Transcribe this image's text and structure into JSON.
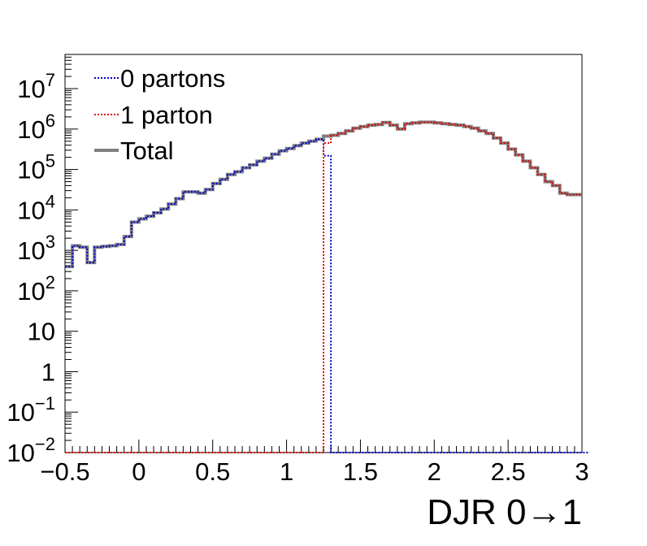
{
  "chart_data": {
    "type": "line",
    "style": "step-histogram",
    "xlabel": "DJR 0→1",
    "ylabel": "",
    "title": "",
    "xlim": [
      -0.5,
      3.0
    ],
    "ylim": [
      0.01,
      70000000
    ],
    "yscale": "log",
    "grid": false,
    "legend_position": "top-left",
    "x_ticks": [
      {
        "value": -0.5,
        "label": "−0.5"
      },
      {
        "value": 0,
        "label": "0"
      },
      {
        "value": 0.5,
        "label": "0.5"
      },
      {
        "value": 1,
        "label": "1"
      },
      {
        "value": 1.5,
        "label": "1.5"
      },
      {
        "value": 2,
        "label": "2"
      },
      {
        "value": 2.5,
        "label": "2.5"
      },
      {
        "value": 3,
        "label": "3"
      }
    ],
    "y_ticks": [
      {
        "value": 0.01,
        "base": "10",
        "exp": "−2"
      },
      {
        "value": 0.1,
        "base": "10",
        "exp": "−1"
      },
      {
        "value": 1,
        "base": "1",
        "exp": ""
      },
      {
        "value": 10,
        "base": "10",
        "exp": ""
      },
      {
        "value": 100,
        "base": "10",
        "exp": "2"
      },
      {
        "value": 1000,
        "base": "10",
        "exp": "3"
      },
      {
        "value": 10000,
        "base": "10",
        "exp": "4"
      },
      {
        "value": 100000,
        "base": "10",
        "exp": "5"
      },
      {
        "value": 1000000,
        "base": "10",
        "exp": "6"
      },
      {
        "value": 10000000,
        "base": "10",
        "exp": "7"
      }
    ],
    "series": [
      {
        "name": "0 partons",
        "color": "#0000cc",
        "dash": "dotted",
        "points": [
          [
            -0.5,
            400
          ],
          [
            -0.45,
            1300
          ],
          [
            -0.4,
            1200
          ],
          [
            -0.35,
            500
          ],
          [
            -0.3,
            1200
          ],
          [
            -0.25,
            1250
          ],
          [
            -0.2,
            1300
          ],
          [
            -0.15,
            1400
          ],
          [
            -0.1,
            2200
          ],
          [
            -0.05,
            5000
          ],
          [
            0,
            6000
          ],
          [
            0.05,
            7000
          ],
          [
            0.1,
            8500
          ],
          [
            0.15,
            10500
          ],
          [
            0.2,
            14000
          ],
          [
            0.25,
            19000
          ],
          [
            0.3,
            28000
          ],
          [
            0.35,
            28000
          ],
          [
            0.4,
            26000
          ],
          [
            0.45,
            32000
          ],
          [
            0.5,
            45000
          ],
          [
            0.55,
            57000
          ],
          [
            0.6,
            75000
          ],
          [
            0.65,
            88000
          ],
          [
            0.7,
            110000
          ],
          [
            0.75,
            130000
          ],
          [
            0.8,
            160000
          ],
          [
            0.85,
            190000
          ],
          [
            0.9,
            240000
          ],
          [
            0.95,
            290000
          ],
          [
            1.0,
            330000
          ],
          [
            1.05,
            390000
          ],
          [
            1.1,
            450000
          ],
          [
            1.15,
            500000
          ],
          [
            1.2,
            560000
          ],
          [
            1.25,
            220000
          ],
          [
            1.3,
            0.01
          ],
          [
            1.35,
            0.01
          ],
          [
            3.0,
            0.01
          ]
        ]
      },
      {
        "name": "1 parton",
        "color": "#dd0000",
        "dash": "dotted",
        "points": [
          [
            -0.5,
            0.01
          ],
          [
            1.2,
            0.01
          ],
          [
            1.25,
            450000
          ],
          [
            1.3,
            700000
          ],
          [
            1.35,
            780000
          ],
          [
            1.4,
            900000
          ],
          [
            1.45,
            1050000
          ],
          [
            1.5,
            1150000
          ],
          [
            1.55,
            1250000
          ],
          [
            1.6,
            1300000
          ],
          [
            1.65,
            1450000
          ],
          [
            1.7,
            1250000
          ],
          [
            1.75,
            1000000
          ],
          [
            1.8,
            1350000
          ],
          [
            1.85,
            1420000
          ],
          [
            1.9,
            1480000
          ],
          [
            1.95,
            1480000
          ],
          [
            2.0,
            1420000
          ],
          [
            2.05,
            1350000
          ],
          [
            2.1,
            1300000
          ],
          [
            2.15,
            1250000
          ],
          [
            2.2,
            1150000
          ],
          [
            2.25,
            1050000
          ],
          [
            2.3,
            900000
          ],
          [
            2.35,
            780000
          ],
          [
            2.4,
            600000
          ],
          [
            2.45,
            450000
          ],
          [
            2.5,
            320000
          ],
          [
            2.55,
            230000
          ],
          [
            2.6,
            160000
          ],
          [
            2.65,
            110000
          ],
          [
            2.7,
            75000
          ],
          [
            2.75,
            50000
          ],
          [
            2.8,
            40000
          ],
          [
            2.85,
            26000
          ],
          [
            2.9,
            24000
          ],
          [
            2.95,
            24000
          ]
        ]
      },
      {
        "name": "Total",
        "color": "#808080",
        "dash": "solid",
        "points": [
          [
            -0.5,
            400
          ],
          [
            -0.45,
            1300
          ],
          [
            -0.4,
            1200
          ],
          [
            -0.35,
            500
          ],
          [
            -0.3,
            1200
          ],
          [
            -0.25,
            1250
          ],
          [
            -0.2,
            1300
          ],
          [
            -0.15,
            1400
          ],
          [
            -0.1,
            2200
          ],
          [
            -0.05,
            5000
          ],
          [
            0,
            6000
          ],
          [
            0.05,
            7000
          ],
          [
            0.1,
            8500
          ],
          [
            0.15,
            10500
          ],
          [
            0.2,
            14000
          ],
          [
            0.25,
            19000
          ],
          [
            0.3,
            28000
          ],
          [
            0.35,
            28000
          ],
          [
            0.4,
            26000
          ],
          [
            0.45,
            32000
          ],
          [
            0.5,
            45000
          ],
          [
            0.55,
            57000
          ],
          [
            0.6,
            75000
          ],
          [
            0.65,
            88000
          ],
          [
            0.7,
            110000
          ],
          [
            0.75,
            130000
          ],
          [
            0.8,
            160000
          ],
          [
            0.85,
            190000
          ],
          [
            0.9,
            240000
          ],
          [
            0.95,
            290000
          ],
          [
            1.0,
            330000
          ],
          [
            1.05,
            390000
          ],
          [
            1.1,
            450000
          ],
          [
            1.15,
            500000
          ],
          [
            1.2,
            560000
          ],
          [
            1.25,
            670000
          ],
          [
            1.3,
            700000
          ],
          [
            1.35,
            780000
          ],
          [
            1.4,
            900000
          ],
          [
            1.45,
            1050000
          ],
          [
            1.5,
            1150000
          ],
          [
            1.55,
            1250000
          ],
          [
            1.6,
            1300000
          ],
          [
            1.65,
            1450000
          ],
          [
            1.7,
            1250000
          ],
          [
            1.75,
            1000000
          ],
          [
            1.8,
            1350000
          ],
          [
            1.85,
            1420000
          ],
          [
            1.9,
            1480000
          ],
          [
            1.95,
            1480000
          ],
          [
            2.0,
            1420000
          ],
          [
            2.05,
            1350000
          ],
          [
            2.1,
            1300000
          ],
          [
            2.15,
            1250000
          ],
          [
            2.2,
            1150000
          ],
          [
            2.25,
            1050000
          ],
          [
            2.3,
            900000
          ],
          [
            2.35,
            780000
          ],
          [
            2.4,
            600000
          ],
          [
            2.45,
            450000
          ],
          [
            2.5,
            320000
          ],
          [
            2.55,
            230000
          ],
          [
            2.6,
            160000
          ],
          [
            2.65,
            110000
          ],
          [
            2.7,
            75000
          ],
          [
            2.75,
            50000
          ],
          [
            2.8,
            40000
          ],
          [
            2.85,
            26000
          ],
          [
            2.9,
            24000
          ],
          [
            2.95,
            24000
          ]
        ]
      }
    ]
  }
}
